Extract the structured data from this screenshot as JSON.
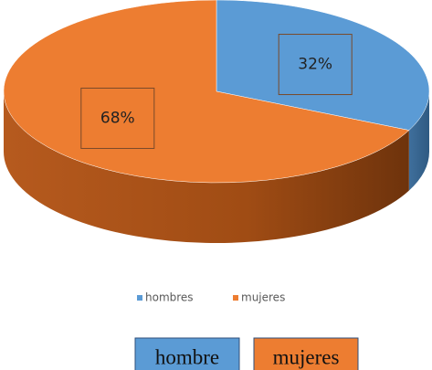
{
  "chart_data": {
    "type": "pie",
    "categories": [
      "hombres",
      "mujeres"
    ],
    "values": [
      32,
      68
    ],
    "value_labels": [
      "32%",
      "68%"
    ],
    "colors": [
      "#5b9bd5",
      "#ed7d31"
    ],
    "legend": "bottom",
    "annotations": [
      "hombre",
      "mujeres"
    ]
  }
}
